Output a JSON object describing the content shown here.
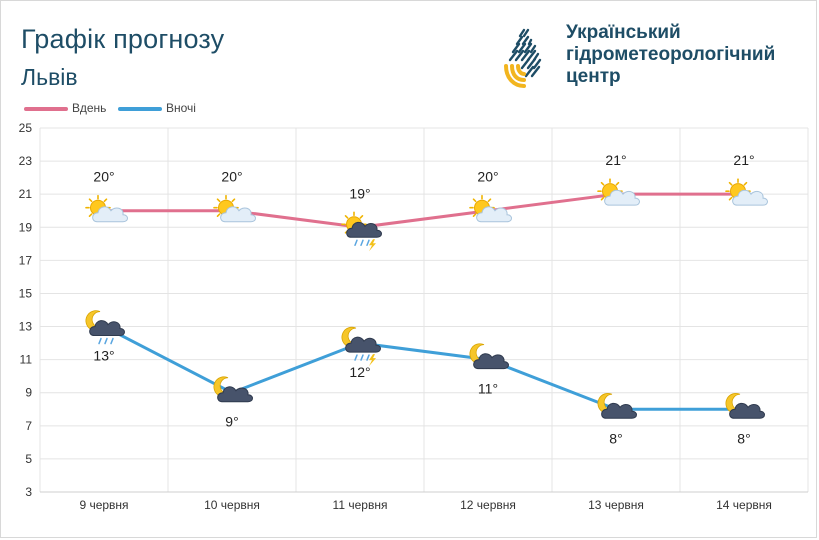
{
  "header": {
    "title": "Графік прогнозу",
    "city": "Львів",
    "org_lines": [
      "Український",
      "гідрометеорологічний",
      "центр"
    ],
    "logo_icon": "drop-logo-icon"
  },
  "colors": {
    "day": "#e0708e",
    "night": "#3f9fd8",
    "text": "#1e4d66",
    "grid": "#e4e4e4",
    "logo_dark": "#1e4d66",
    "logo_accent": "#f2b51f"
  },
  "chart_data": {
    "type": "line",
    "categories": [
      "9 червня",
      "10 червня",
      "11 червня",
      "12 червня",
      "13 червня",
      "14 червня"
    ],
    "ylim": [
      3,
      25
    ],
    "yticks": [
      3,
      5,
      7,
      9,
      11,
      13,
      15,
      17,
      19,
      21,
      23,
      25
    ],
    "grid": true,
    "legend_position": "top-left",
    "series": [
      {
        "name": "Вдень",
        "values": [
          20,
          20,
          19,
          20,
          21,
          21
        ],
        "labels": [
          "20°",
          "20°",
          "19°",
          "20°",
          "21°",
          "21°"
        ],
        "label_position": "above",
        "icons": [
          "sun-cloud-icon",
          "sun-cloud-icon",
          "sun-storm-rain-icon",
          "sun-cloud-icon",
          "sun-cloud-icon",
          "sun-cloud-icon"
        ]
      },
      {
        "name": "Вночі",
        "values": [
          13,
          9,
          12,
          11,
          8,
          8
        ],
        "labels": [
          "13°",
          "9°",
          "12°",
          "11°",
          "8°",
          "8°"
        ],
        "label_position": "below",
        "icons": [
          "moon-cloud-rain-icon",
          "moon-cloud-icon",
          "moon-storm-rain-icon",
          "moon-cloud-icon",
          "moon-cloud-icon",
          "moon-cloud-icon"
        ]
      }
    ]
  }
}
